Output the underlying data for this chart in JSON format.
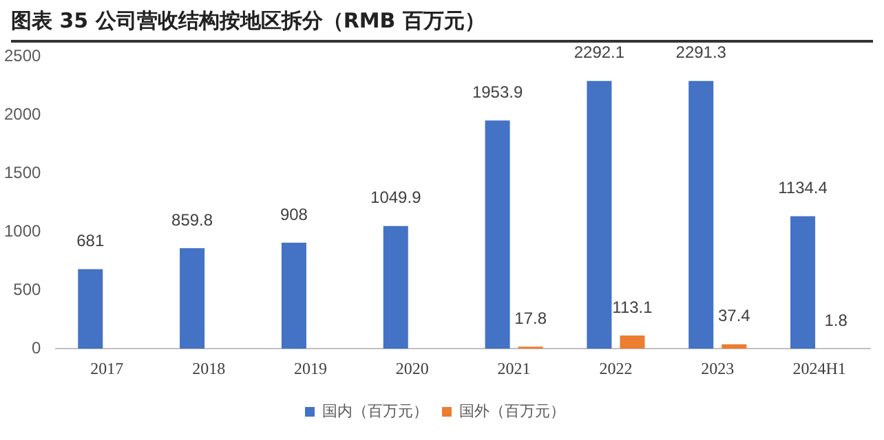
{
  "chart_data": {
    "type": "bar",
    "title": "图表 35 公司营收结构按地区拆分（RMB 百万元）",
    "categories": [
      "2017",
      "2018",
      "2019",
      "2020",
      "2021",
      "2022",
      "2023",
      "2024H1"
    ],
    "series": [
      {
        "name": "国内（百万元）",
        "color": "#4472c4",
        "values": [
          681,
          859.8,
          908,
          1049.9,
          1953.9,
          2292.1,
          2291.3,
          1134.4
        ]
      },
      {
        "name": "国外（百万元）",
        "color": "#ed7d31",
        "values": [
          null,
          null,
          null,
          null,
          17.8,
          113.1,
          37.4,
          1.8
        ]
      }
    ],
    "ylim": [
      0,
      2500
    ],
    "yticks": [
      0,
      500,
      1000,
      1500,
      2000,
      2500
    ],
    "grid": false,
    "legend": "bottom",
    "data_labels": true
  }
}
